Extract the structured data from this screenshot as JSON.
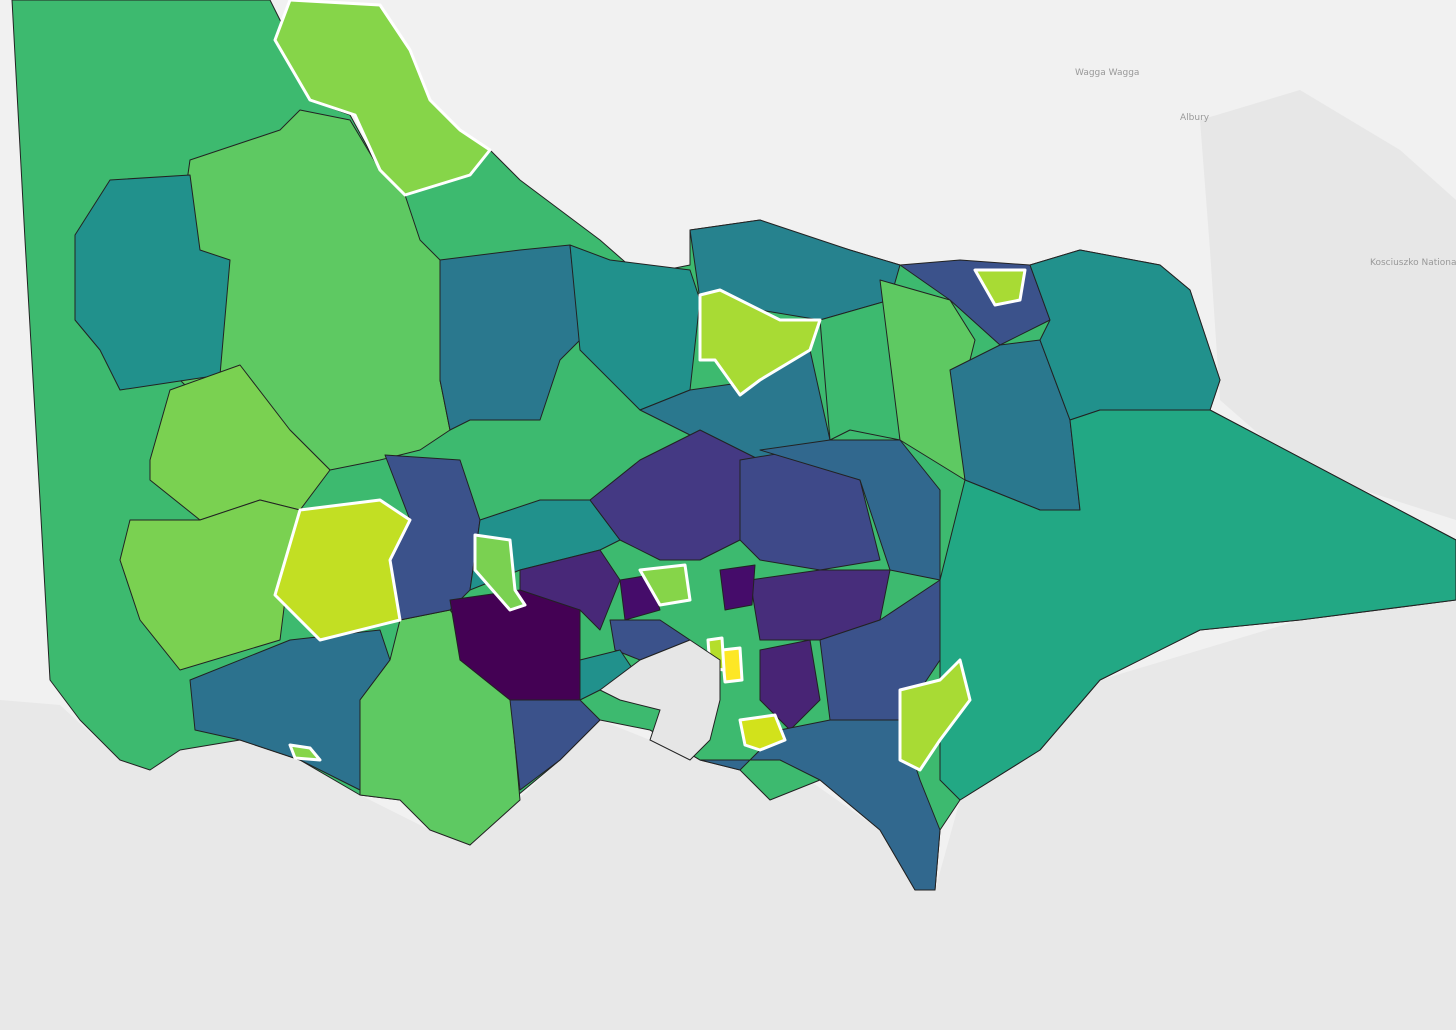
{
  "basemap_labels": [
    "Wagga Wagga",
    "Albury",
    "Kosciuszko National Park"
  ]
}
